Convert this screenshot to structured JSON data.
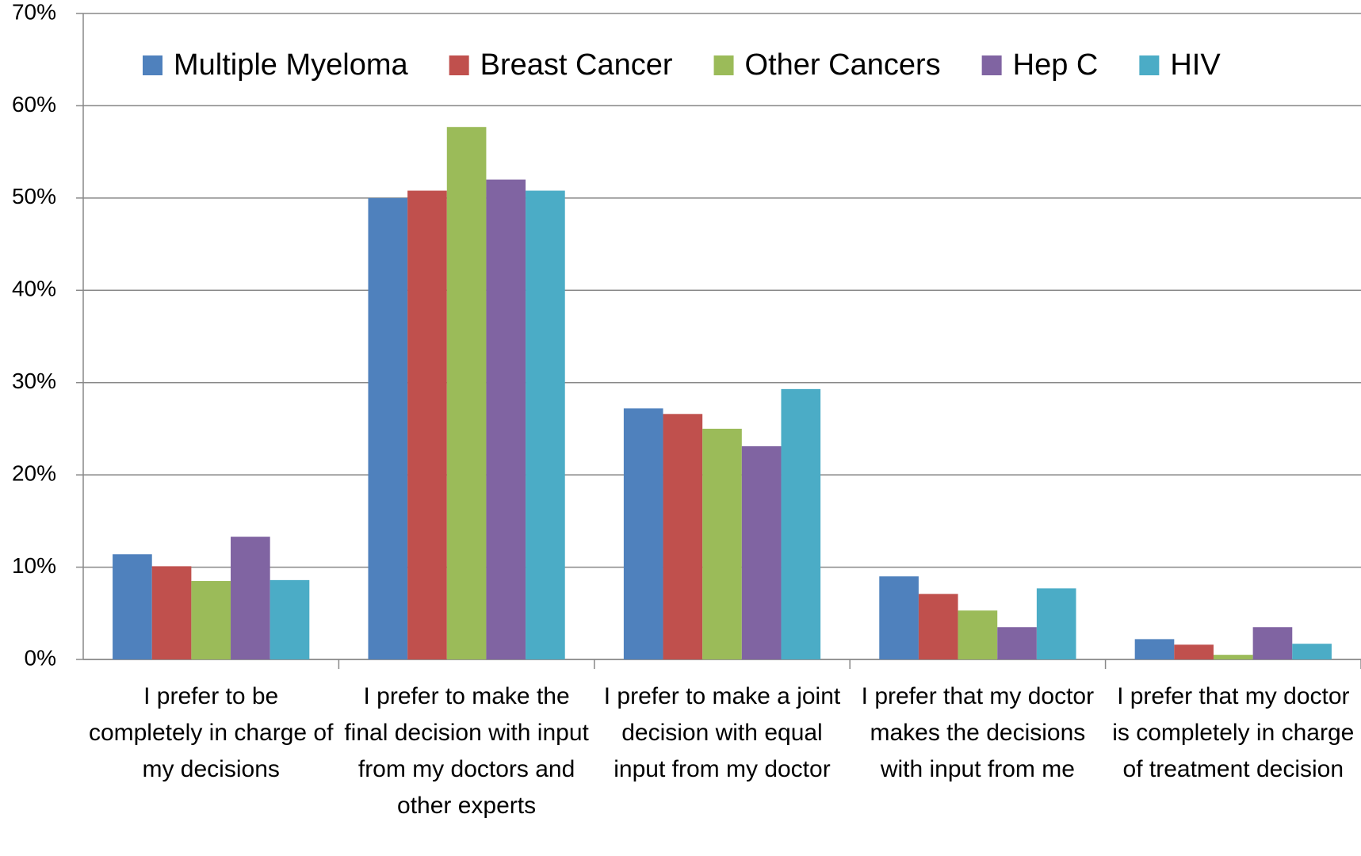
{
  "chart_data": {
    "type": "bar",
    "categories": [
      "I prefer to be completely in charge of my decisions",
      "I prefer to make the final decision with input from my doctors and other experts",
      "I prefer to make a joint decision with equal input from my doctor",
      "I prefer that my doctor makes the decisions with input from me",
      "I prefer that my doctor is completely in charge of treatment decision"
    ],
    "series": [
      {
        "name": "Multiple Myeloma",
        "color": "#4f81bd",
        "values": [
          11.4,
          50.0,
          27.2,
          9.0,
          2.2
        ]
      },
      {
        "name": "Breast Cancer",
        "color": "#c0504d",
        "values": [
          10.1,
          50.8,
          26.6,
          7.1,
          1.6
        ]
      },
      {
        "name": "Other Cancers",
        "color": "#9bbb59",
        "values": [
          8.5,
          57.7,
          25.0,
          5.3,
          0.5
        ]
      },
      {
        "name": "Hep C",
        "color": "#8064a2",
        "values": [
          13.3,
          52.0,
          23.1,
          3.5,
          3.5
        ]
      },
      {
        "name": "HIV",
        "color": "#4bacc6",
        "values": [
          8.6,
          50.8,
          29.3,
          7.7,
          1.7
        ]
      }
    ],
    "ylim": [
      0,
      70
    ],
    "yticks": [
      {
        "value": 0,
        "label": "0%"
      },
      {
        "value": 10,
        "label": "10%"
      },
      {
        "value": 20,
        "label": "20%"
      },
      {
        "value": 30,
        "label": "30%"
      },
      {
        "value": 40,
        "label": "40%"
      },
      {
        "value": 50,
        "label": "50%"
      },
      {
        "value": 60,
        "label": "60%"
      },
      {
        "value": 70,
        "label": "70%"
      }
    ],
    "grid": true,
    "legend": "top"
  }
}
